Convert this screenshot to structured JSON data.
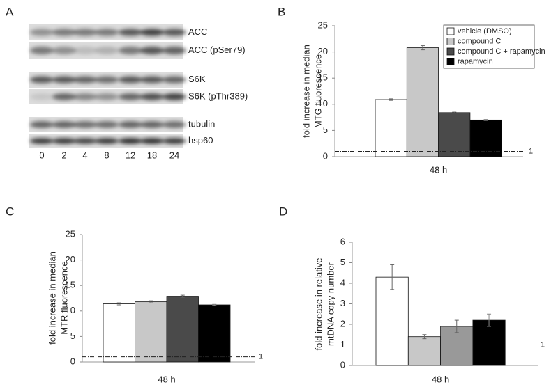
{
  "blot": {
    "panel": "A",
    "rows": [
      "ACC",
      "ACC (pSer79)",
      "S6K",
      "S6K (pThr389)",
      "tubulin",
      "hsp60"
    ],
    "lanes": [
      0,
      2,
      4,
      8,
      12,
      18,
      24
    ]
  },
  "chart_data": [
    {
      "type": "bar",
      "panel": "B",
      "y_label": [
        "fold increase in median",
        "MTG fluorescence"
      ],
      "categories": [
        "48 h"
      ],
      "series": [
        {
          "name": "vehicle (DMSO)",
          "color": "#ffffff",
          "values": [
            10.9
          ],
          "errors": [
            0.15
          ]
        },
        {
          "name": "compound C",
          "color": "#c8c8c8",
          "values": [
            20.8
          ],
          "errors": [
            0.4
          ]
        },
        {
          "name": "compound C + rapamycin",
          "color": "#4a4a4a",
          "values": [
            8.4
          ],
          "errors": [
            0.1
          ]
        },
        {
          "name": "rapamycin",
          "color": "#000000",
          "values": [
            7.0
          ],
          "errors": [
            0.1
          ]
        }
      ],
      "ylim": [
        0,
        25
      ],
      "yticks": [
        0,
        5,
        10,
        15,
        20,
        25
      ],
      "hline": 1
    },
    {
      "type": "bar",
      "panel": "C",
      "y_label": [
        "fold increase in median",
        "MTR fluorescence"
      ],
      "categories": [
        "48 h"
      ],
      "series": [
        {
          "color": "#ffffff",
          "values": [
            11.4
          ],
          "errors": [
            0.2
          ]
        },
        {
          "color": "#c8c8c8",
          "values": [
            11.8
          ],
          "errors": [
            0.2
          ]
        },
        {
          "color": "#4a4a4a",
          "values": [
            12.9
          ],
          "errors": [
            0.2
          ]
        },
        {
          "color": "#000000",
          "values": [
            11.2
          ],
          "errors": [
            0.1
          ]
        }
      ],
      "ylim": [
        0,
        25
      ],
      "yticks": [
        0,
        5,
        10,
        15,
        20,
        25
      ],
      "hline": 1
    },
    {
      "type": "bar",
      "panel": "D",
      "y_label": [
        "fold increase in relative",
        "mtDNA copy number"
      ],
      "categories": [
        "48 h"
      ],
      "series": [
        {
          "color": "#ffffff",
          "values": [
            4.3
          ],
          "errors": [
            0.6
          ]
        },
        {
          "color": "#c8c8c8",
          "values": [
            1.4
          ],
          "errors": [
            0.1
          ]
        },
        {
          "color": "#999999",
          "values": [
            1.9
          ],
          "errors": [
            0.3
          ]
        },
        {
          "color": "#000000",
          "values": [
            2.2
          ],
          "errors": [
            0.3
          ]
        }
      ],
      "ylim": [
        0,
        6
      ],
      "yticks": [
        0,
        1,
        2,
        3,
        4,
        5,
        6
      ],
      "hline": 1
    }
  ]
}
